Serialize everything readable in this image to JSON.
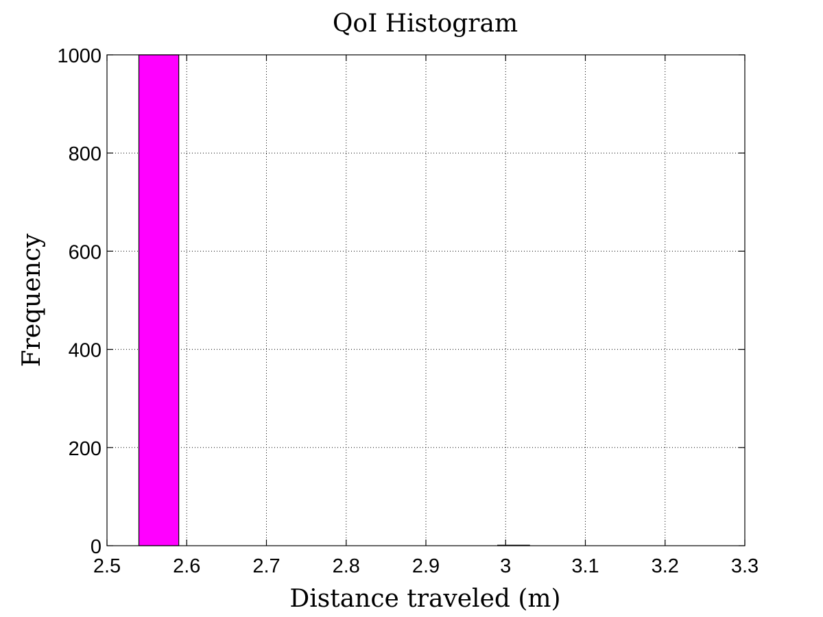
{
  "chart_data": {
    "type": "bar",
    "title": "QoI Histogram",
    "xlabel": "Distance traveled (m)",
    "ylabel": "Frequency",
    "xlim": [
      2.5,
      3.3
    ],
    "ylim": [
      0,
      1000
    ],
    "xticks": [
      "2.5",
      "2.6",
      "2.7",
      "2.8",
      "2.9",
      "3",
      "3.1",
      "3.2",
      "3.3"
    ],
    "yticks": [
      "0",
      "200",
      "400",
      "600",
      "800",
      "1000"
    ],
    "grid": true,
    "bar_color": "#ff00ff",
    "bins": [
      {
        "x0": 2.54,
        "x1": 2.59,
        "count": 1000
      },
      {
        "x0": 2.99,
        "x1": 3.03,
        "count": 1
      }
    ]
  }
}
